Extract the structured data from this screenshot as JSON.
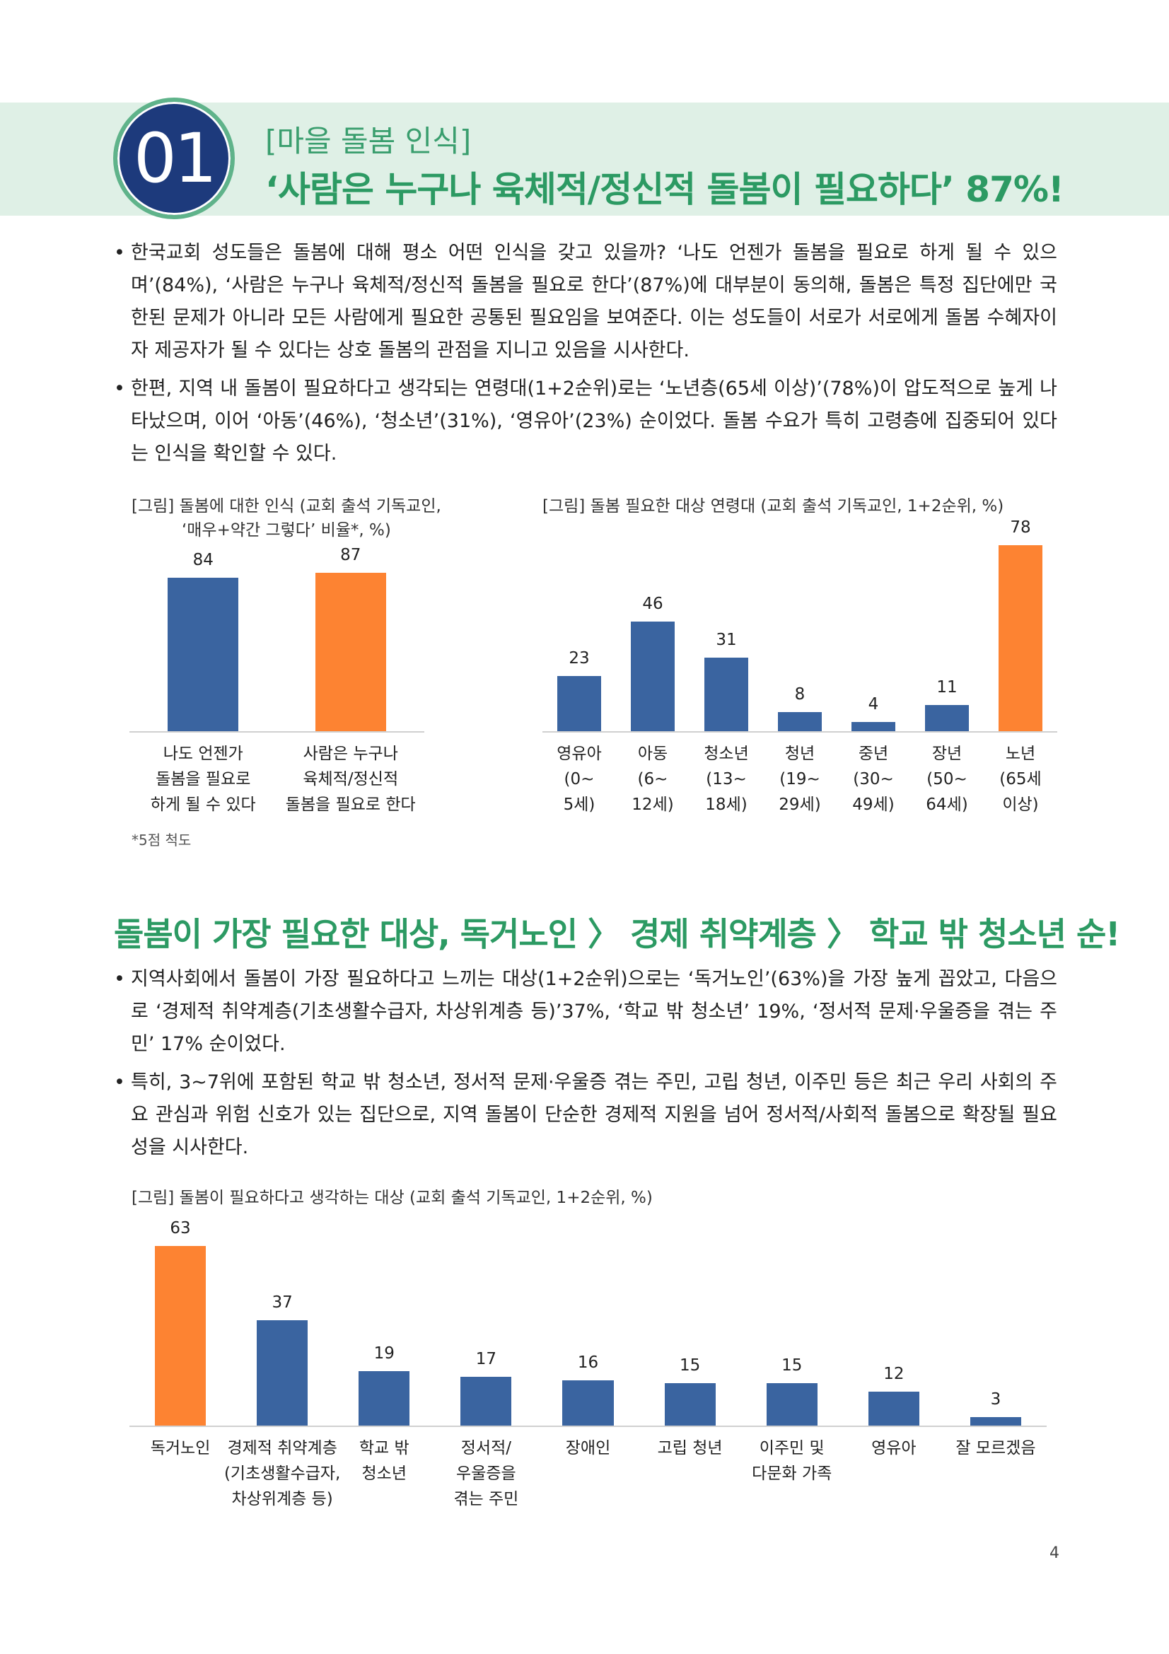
{
  "header": {
    "number": "01",
    "subtitle": "[마을 돌봄 인식]",
    "title": "‘사람은 누구나 육체적/정신적 돌봄이 필요하다’ 87%!"
  },
  "section1_bullets": [
    "한국교회 성도들은 돌봄에 대해 평소 어떤 인식을 갖고 있을까? ‘나도 언젠가 돌봄을 필요로 하게 될 수 있으며’(84%), ‘사람은 누구나 육체적/정신적 돌봄을 필요로 한다’(87%)에 대부분이 동의해, 돌봄은 특정 집단에만 국한된 문제가 아니라 모든 사람에게 필요한 공통된 필요임을 보여준다. 이는 성도들이 서로가 서로에게 돌봄 수혜자이자 제공자가 될 수 있다는 상호 돌봄의 관점을 지니고 있음을 시사한다.",
    "한편, 지역 내 돌봄이 필요하다고 생각되는 연령대(1+2순위)로는 ‘노년층(65세 이상)’(78%)이 압도적으로 높게 나타났으며, 이어 ‘아동’(46%), ‘청소년’(31%), ‘영유아’(23%) 순이었다. 돌봄 수요가 특히 고령층에 집중되어 있다는 인식을 확인할 수 있다."
  ],
  "footnote": "*5점 척도",
  "section2_title": "돌봄이 가장 필요한 대상, 독거노인 〉 경제 취약계층 〉 학교 밖 청소년 순!",
  "section2_bullets": [
    "지역사회에서 돌봄이 가장 필요하다고 느끼는 대상(1+2순위)으로는 ‘독거노인’(63%)을 가장 높게 꼽았고, 다음으로 ‘경제적 취약계층(기초생활수급자, 차상위계층 등)’37%, ‘학교 밖 청소년’ 19%, ‘정서적 문제·우울증을 겪는 주민’ 17% 순이었다.",
    "특히, 3~7위에 포함된 학교 밖 청소년, 정서적 문제·우울증 겪는 주민, 고립 청년, 이주민 등은 최근 우리 사회의 주요 관심과 위험 신호가 있는 집단으로, 지역 돌봄이 단순한 경제적 지원을 넘어 정서적/사회적 돌봄으로 확장될 필요성을 시사한다."
  ],
  "page_number": "4",
  "chart_data": [
    {
      "type": "bar",
      "title": "[그림] 돌봄에 대한 인식 (교회 출석 기독교인,\n‘매우+약간 그렇다’ 비율*, %)",
      "categories": [
        "나도 언젠가\n돌봄을 필요로\n하게 될 수 있다",
        "사람은 누구나\n육체적/정신적\n돌봄을 필요로 한다"
      ],
      "values": [
        84,
        87
      ],
      "colors": [
        "#3a64a0",
        "#fd8332"
      ]
    },
    {
      "type": "bar",
      "title": "[그림] 돌봄 필요한 대상 연령대 (교회 출석 기독교인, 1+2순위, %)",
      "categories": [
        "영유아\n(0~\n5세)",
        "아동\n(6~\n12세)",
        "청소년\n(13~\n18세)",
        "청년\n(19~\n29세)",
        "중년\n(30~\n49세)",
        "장년\n(50~\n64세)",
        "노년\n(65세\n이상)"
      ],
      "values": [
        23,
        46,
        31,
        8,
        4,
        11,
        78
      ],
      "colors": [
        "#3a64a0",
        "#3a64a0",
        "#3a64a0",
        "#3a64a0",
        "#3a64a0",
        "#3a64a0",
        "#fd8332"
      ]
    },
    {
      "type": "bar",
      "title": "[그림] 돌봄이 필요하다고 생각하는 대상 (교회 출석 기독교인, 1+2순위, %)",
      "categories": [
        "독거노인",
        "경제적 취약계층\n(기초생활수급자,\n차상위계층 등)",
        "학교 밖\n청소년",
        "정서적/\n우울증을\n겪는 주민",
        "장애인",
        "고립 청년",
        "이주민 및\n다문화 가족",
        "영유아",
        "잘 모르겠음"
      ],
      "values": [
        63,
        37,
        19,
        17,
        16,
        15,
        15,
        12,
        3
      ],
      "colors": [
        "#fd8332",
        "#3a64a0",
        "#3a64a0",
        "#3a64a0",
        "#3a64a0",
        "#3a64a0",
        "#3a64a0",
        "#3a64a0",
        "#3a64a0"
      ]
    }
  ]
}
